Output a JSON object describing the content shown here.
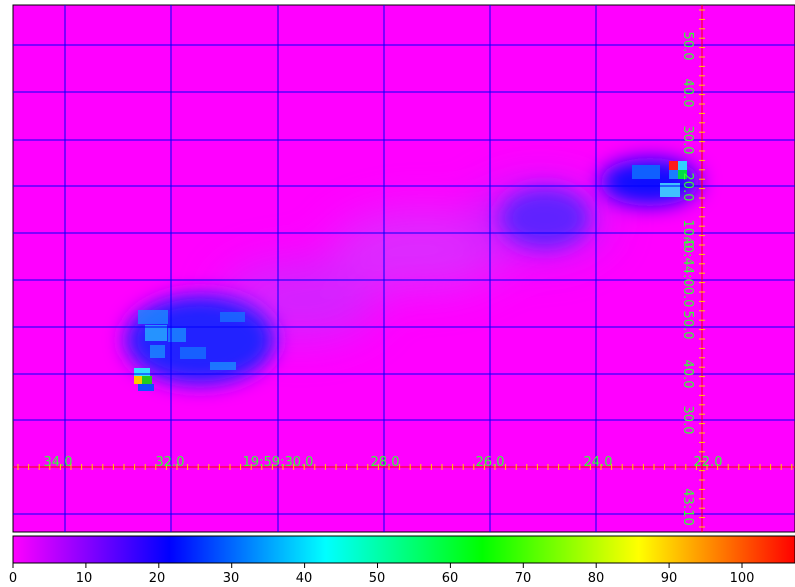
{
  "image_panel": {
    "background": "#ff00ff",
    "grid_color": "#0000ff",
    "axis_color": "#ff0000",
    "label_color": "#33ff33",
    "ra_labels": [
      "34.0",
      "32.0",
      "19:59:30.0",
      "28.0",
      "26.0",
      "24.0",
      "22.0"
    ],
    "dec_labels_upper": [
      "50.0",
      "40.0",
      "30.0",
      "20.0",
      "10.0",
      "40:44:00.0",
      "50.0",
      "40.0",
      "30.0"
    ],
    "dec_labels_lower": [
      "43:10"
    ]
  },
  "colorbar": {
    "stops": [
      "#ff00ff",
      "#8000ff",
      "#0000ff",
      "#0080ff",
      "#00ffff",
      "#00ff80",
      "#00ff00",
      "#80ff00",
      "#ffff00",
      "#ff8000",
      "#ff0000"
    ],
    "ticks": [
      "0",
      "10",
      "20",
      "30",
      "40",
      "50",
      "60",
      "70",
      "80",
      "90",
      "100"
    ]
  }
}
